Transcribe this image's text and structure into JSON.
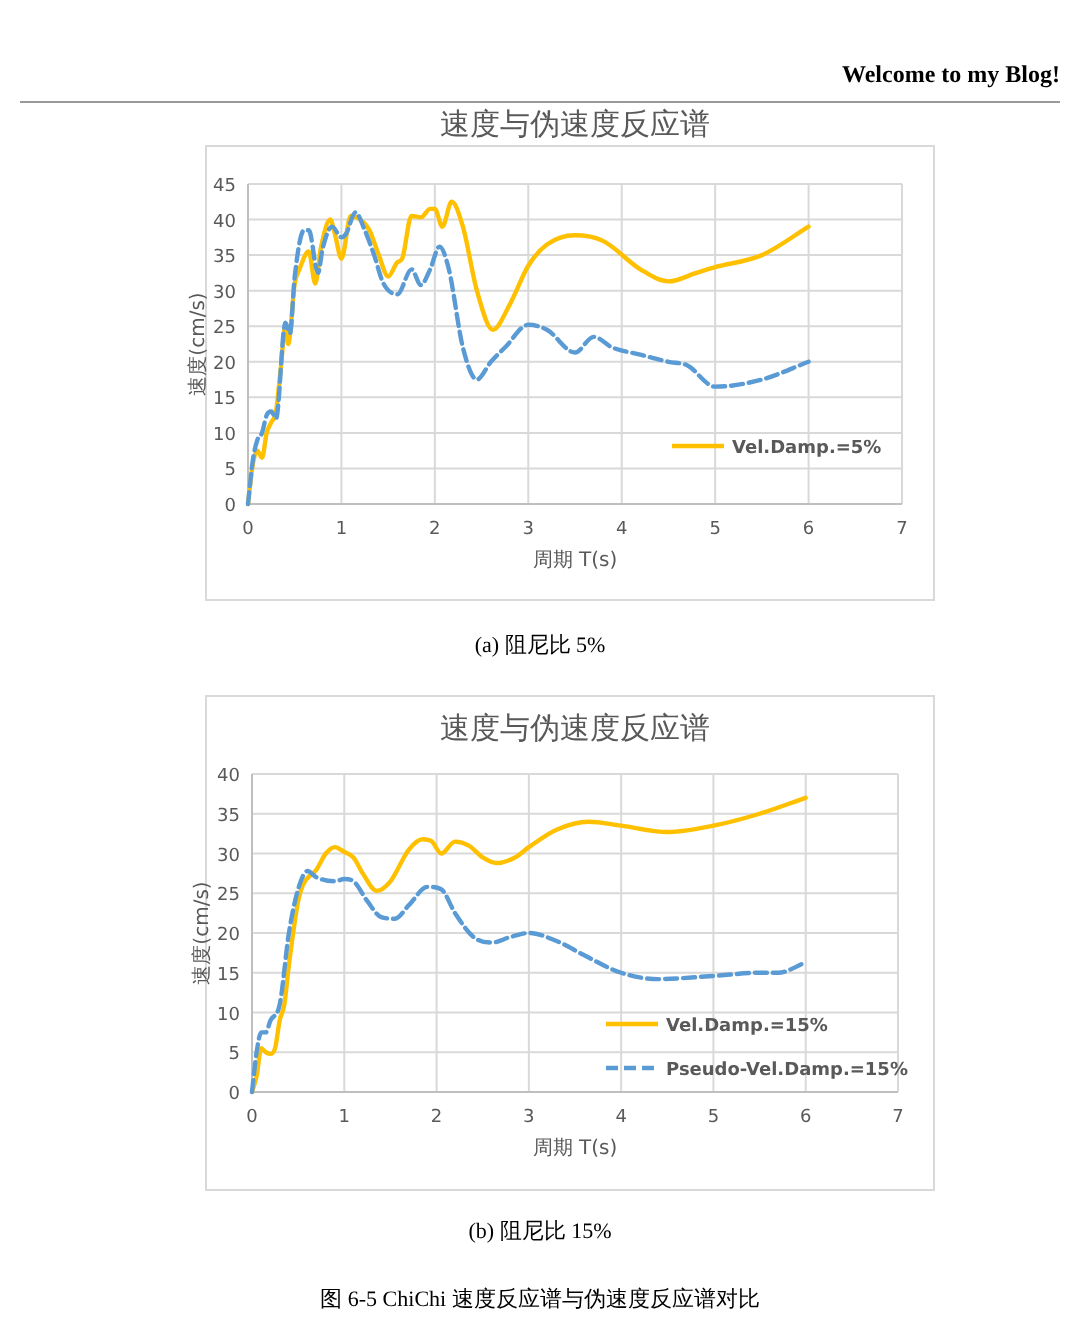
{
  "chart_data": [
    {
      "type": "line",
      "title": "速度与伪速度反应谱",
      "xlabel": "周期 T(s)",
      "ylabel": "速度(cm/s)",
      "xlim": [
        0,
        7
      ],
      "xticks": [
        0,
        1,
        2,
        3,
        4,
        5,
        6,
        7
      ],
      "ylim": [
        0,
        45
      ],
      "yticks": [
        0,
        5,
        10,
        15,
        20,
        25,
        30,
        35,
        40,
        45
      ],
      "grid": true,
      "legend": "bottom right",
      "annotations": [
        "Welcome to my Blog!",
        "(a)  阻尼比 5%"
      ],
      "series": [
        {
          "name": "Vel.Damp.=5%",
          "color": "#ffc000",
          "line_style": "solid",
          "x": [
            0,
            0.05,
            0.1,
            0.15,
            0.2,
            0.25,
            0.3,
            0.35,
            0.4,
            0.43,
            0.5,
            0.55,
            0.65,
            0.72,
            0.78,
            0.88,
            0.93,
            1.0,
            1.1,
            1.2,
            1.3,
            1.4,
            1.5,
            1.6,
            1.65,
            1.75,
            1.85,
            1.95,
            2.0,
            2.08,
            2.18,
            2.3,
            2.45,
            2.62,
            2.8,
            3.0,
            3.2,
            3.5,
            3.8,
            4.2,
            4.5,
            4.8,
            5.0,
            5.5,
            6.0
          ],
          "values": [
            0,
            5.5,
            7.5,
            6.5,
            10,
            11.5,
            13,
            19,
            25,
            22.5,
            31,
            33,
            35.5,
            31,
            36,
            40,
            38,
            34.5,
            40.5,
            40,
            38.5,
            35,
            32,
            34,
            34.5,
            40.5,
            40.3,
            41.5,
            41.5,
            39,
            42.5,
            39,
            30,
            24.5,
            28,
            33.5,
            36.5,
            37.8,
            37,
            33,
            31.3,
            32.5,
            33.3,
            35,
            39
          ]
        },
        {
          "color": "#5b9bd5",
          "line_style": "dashed",
          "x": [
            0,
            0.05,
            0.1,
            0.15,
            0.2,
            0.25,
            0.3,
            0.4,
            0.45,
            0.5,
            0.6,
            0.65,
            0.75,
            0.8,
            0.9,
            1.0,
            1.05,
            1.15,
            1.25,
            1.35,
            1.45,
            1.6,
            1.75,
            1.85,
            1.95,
            2.05,
            2.15,
            2.3,
            2.45,
            2.6,
            2.75,
            3.0,
            3.2,
            3.5,
            3.7,
            3.9,
            4.2,
            4.5,
            4.7,
            5.0,
            5.5,
            6.0
          ],
          "values": [
            0,
            6,
            9,
            10,
            12.5,
            13,
            12,
            25.5,
            24,
            32,
            38.5,
            38.5,
            32.5,
            36,
            39,
            37.5,
            38,
            41,
            38.5,
            35,
            31,
            29.5,
            33,
            30.8,
            33,
            36.2,
            33,
            22,
            17.5,
            20,
            22,
            25.2,
            24.5,
            21.3,
            23.5,
            22,
            21,
            20,
            19.5,
            16.5,
            17.5,
            20
          ]
        }
      ]
    },
    {
      "type": "line",
      "title": "速度与伪速度反应谱",
      "xlabel": "周期 T(s)",
      "ylabel": "速度(cm/s)",
      "xlim": [
        0,
        7
      ],
      "xticks": [
        0,
        1,
        2,
        3,
        4,
        5,
        6,
        7
      ],
      "ylim": [
        0,
        40
      ],
      "yticks": [
        0,
        5,
        10,
        15,
        20,
        25,
        30,
        35,
        40
      ],
      "grid": true,
      "legend": "bottom right",
      "annotations": [
        "(b)  阻尼比 15%",
        "图  6-5 ChiChi 速度反应谱与伪速度反应谱对比"
      ],
      "series": [
        {
          "name": "Vel.Damp.=15%",
          "color": "#ffc000",
          "line_style": "solid",
          "x": [
            0,
            0.05,
            0.1,
            0.15,
            0.2,
            0.25,
            0.3,
            0.35,
            0.4,
            0.5,
            0.55,
            0.7,
            0.8,
            0.9,
            1.0,
            1.1,
            1.2,
            1.35,
            1.5,
            1.7,
            1.85,
            1.95,
            2.05,
            2.2,
            2.35,
            2.5,
            2.65,
            2.85,
            3.0,
            3.3,
            3.65,
            4.0,
            4.5,
            5.0,
            5.5,
            6.0
          ],
          "values": [
            0,
            2,
            5.5,
            5,
            4.8,
            5.5,
            9,
            11,
            16,
            24,
            26,
            28,
            30,
            30.8,
            30.2,
            29.5,
            27.5,
            25.3,
            26.5,
            30.5,
            31.8,
            31.5,
            30,
            31.5,
            31,
            29.5,
            28.8,
            29.5,
            30.8,
            33,
            34,
            33.5,
            32.7,
            33.5,
            35,
            37
          ]
        },
        {
          "name": "Pseudo-Vel.Damp.=15%",
          "color": "#5b9bd5",
          "line_style": "dashed",
          "x": [
            0,
            0.05,
            0.1,
            0.15,
            0.2,
            0.3,
            0.4,
            0.5,
            0.6,
            0.7,
            0.9,
            1.0,
            1.1,
            1.25,
            1.4,
            1.55,
            1.7,
            1.9,
            2.05,
            2.2,
            2.4,
            2.6,
            2.8,
            3.0,
            3.3,
            3.6,
            4.0,
            4.4,
            5.0,
            5.5,
            5.7,
            6.0
          ],
          "values": [
            0,
            5,
            7.5,
            7.5,
            9,
            11,
            20,
            25.5,
            27.8,
            27,
            26.5,
            26.8,
            26.5,
            24,
            22,
            21.8,
            23.5,
            25.8,
            25.5,
            22.5,
            19.5,
            18.8,
            19.5,
            20,
            19,
            17.2,
            15,
            14.2,
            14.6,
            15,
            15,
            16.3
          ]
        }
      ]
    }
  ]
}
